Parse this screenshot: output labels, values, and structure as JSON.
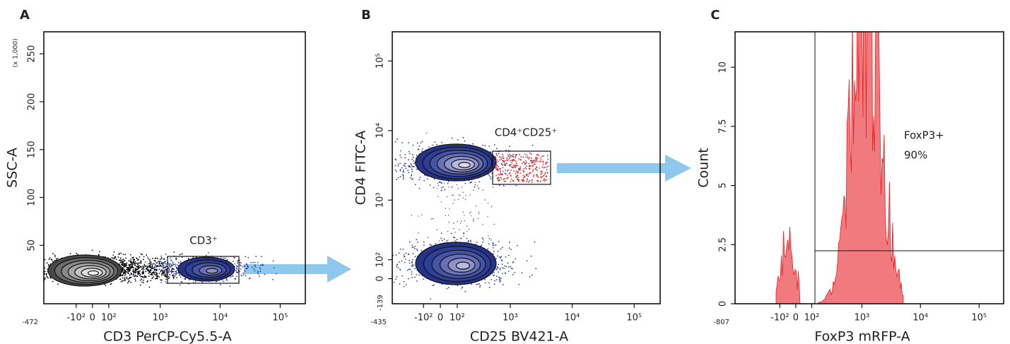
{
  "chart_data": [
    {
      "type": "contour",
      "panel_label": "A",
      "xlabel": "CD3 PerCP-Cy5.5-A",
      "ylabel": "SSC-A",
      "y_unit": "(x 1,000)",
      "xscale": "biexponential",
      "yscale": "linear",
      "xlim": [
        -472,
        262144
      ],
      "ylim": [
        -11,
        273
      ],
      "xticks": [
        {
          "value": -100,
          "label": "-10²"
        },
        0,
        {
          "value": 100,
          "label": "10²"
        },
        {
          "value": 1000,
          "label": "10³"
        },
        {
          "value": 10000,
          "label": "10⁴"
        },
        {
          "value": 100000,
          "label": "10⁵"
        }
      ],
      "yticks": [
        50,
        100,
        150,
        200,
        250
      ],
      "annotations": [
        "CD3⁺"
      ]
    },
    {
      "type": "contour",
      "panel_label": "B",
      "xlabel": "CD25 BV421-A",
      "ylabel": "CD4 FITC-A",
      "xscale": "biexponential",
      "yscale": "biexponential",
      "xlim": [
        -435,
        262144
      ],
      "ylim": [
        -139,
        262144
      ],
      "xticks": [
        {
          "value": -100,
          "label": "-10²"
        },
        0,
        {
          "value": 100,
          "label": "10²"
        },
        {
          "value": 1000,
          "label": "10³"
        },
        {
          "value": 10000,
          "label": "10⁴"
        },
        {
          "value": 100000,
          "label": "10⁵"
        }
      ],
      "yticks": [
        0,
        {
          "value": 100,
          "label": "10²"
        },
        {
          "value": 1000,
          "label": "10³"
        },
        {
          "value": 10000,
          "label": "10⁴"
        },
        {
          "value": 100000,
          "label": "10⁵"
        }
      ],
      "annotations": [
        "CD4⁺CD25⁺"
      ]
    },
    {
      "type": "histogram",
      "panel_label": "C",
      "xlabel": "FoxP3 mRFP-A",
      "ylabel": "Count",
      "color": "#f07a7e",
      "xscale": "biexponential",
      "yscale": "linear",
      "xlim": [
        -807,
        262144
      ],
      "ylim": [
        0,
        11.5
      ],
      "xticks": [
        {
          "value": -100,
          "label": "-10²"
        },
        0,
        {
          "value": 100,
          "label": "10²"
        },
        {
          "value": 1000,
          "label": "10³"
        },
        {
          "value": 10000,
          "label": "10⁴"
        },
        {
          "value": 100000,
          "label": "10⁵"
        }
      ],
      "yticks": [
        0,
        2.5,
        5,
        7.5,
        10
      ],
      "annotations": [
        "FoxP3+",
        "90%"
      ]
    }
  ]
}
